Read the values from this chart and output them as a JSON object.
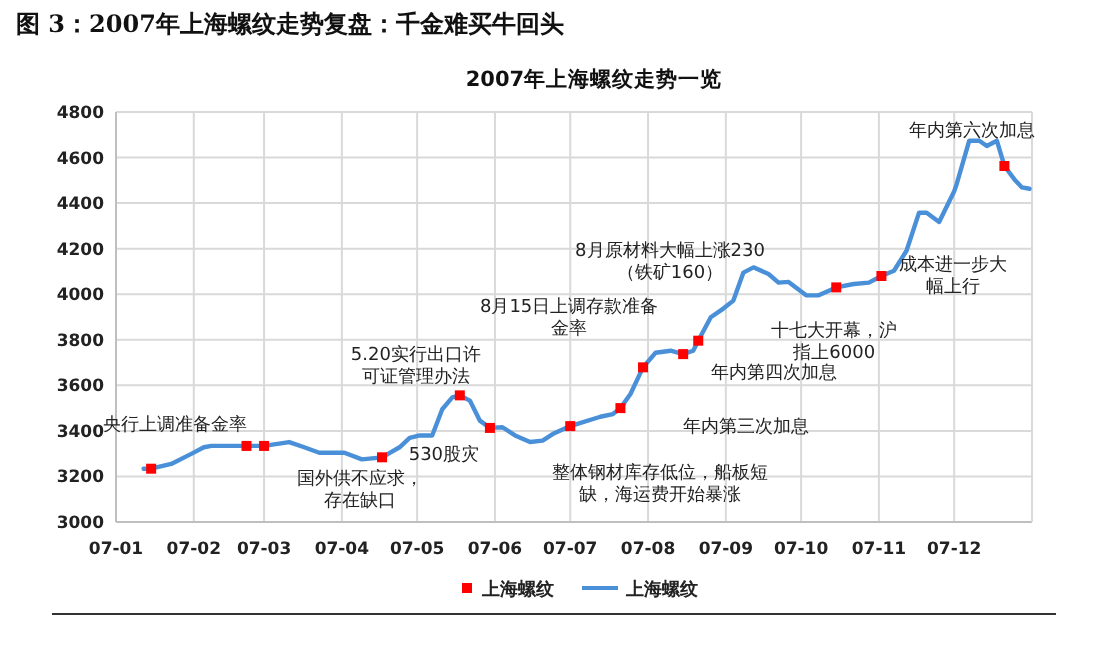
{
  "chart_data": {
    "type": "line",
    "title": "图 3：2007年上海螺纹走势复盘：千金难买牛回头",
    "subtitle": "2007年上海螺纹走势一览",
    "xlim": [
      "2007-01-01",
      "2008-01-01"
    ],
    "xticks": [
      {
        "value": "2007-01-01",
        "label": "07-01"
      },
      {
        "value": "2007-02-01",
        "label": "07-02"
      },
      {
        "value": "2007-03-01",
        "label": "07-03"
      },
      {
        "value": "2007-04-01",
        "label": "07-04"
      },
      {
        "value": "2007-05-01",
        "label": "07-05"
      },
      {
        "value": "2007-06-01",
        "label": "07-06"
      },
      {
        "value": "2007-07-01",
        "label": "07-07"
      },
      {
        "value": "2007-08-01",
        "label": "07-08"
      },
      {
        "value": "2007-09-01",
        "label": "07-09"
      },
      {
        "value": "2007-10-01",
        "label": "07-10"
      },
      {
        "value": "2007-11-01",
        "label": "07-11"
      },
      {
        "value": "2007-12-01",
        "label": "07-12"
      }
    ],
    "ylim": [
      3000,
      4800
    ],
    "yticks": [
      3000,
      3200,
      3400,
      3600,
      3800,
      4000,
      4200,
      4400,
      4600,
      4800
    ],
    "grid": true,
    "legend": "bottom",
    "series": [
      {
        "name": "上海螺纹",
        "type": "scatter",
        "marker": "square",
        "color": "#ff0000",
        "x": [
          "2007-01-15",
          "2007-02-22",
          "2007-03-01",
          "2007-04-17",
          "2007-05-18",
          "2007-05-30",
          "2007-07-01",
          "2007-07-21",
          "2007-07-30",
          "2007-08-15",
          "2007-08-21",
          "2007-10-15",
          "2007-11-02",
          "2007-12-21"
        ],
        "values": [
          3234,
          3334,
          3334,
          3284,
          3556,
          3413,
          3421,
          3500,
          3679,
          3737,
          3796,
          4030,
          4080,
          4563
        ]
      },
      {
        "name": "上海螺纹",
        "color": "#4a90d9",
        "x": [
          "2007-01-12",
          "2007-01-15",
          "2007-01-23",
          "2007-01-31",
          "2007-02-05",
          "2007-02-08",
          "2007-02-21",
          "2007-03-01",
          "2007-03-11",
          "2007-03-17",
          "2007-03-23",
          "2007-04-02",
          "2007-04-09",
          "2007-04-17",
          "2007-04-24",
          "2007-04-28",
          "2007-05-02",
          "2007-05-07",
          "2007-05-11",
          "2007-05-15",
          "2007-05-18",
          "2007-05-22",
          "2007-05-26",
          "2007-05-30",
          "2007-06-04",
          "2007-06-09",
          "2007-06-15",
          "2007-06-20",
          "2007-06-24",
          "2007-07-01",
          "2007-07-13",
          "2007-07-18",
          "2007-07-21",
          "2007-07-25",
          "2007-07-30",
          "2007-08-04",
          "2007-08-10",
          "2007-08-15",
          "2007-08-19",
          "2007-08-21",
          "2007-08-26",
          "2007-08-31",
          "2007-09-04",
          "2007-09-08",
          "2007-09-12",
          "2007-09-18",
          "2007-09-22",
          "2007-09-26",
          "2007-10-03",
          "2007-10-08",
          "2007-10-15",
          "2007-10-22",
          "2007-10-28",
          "2007-11-02",
          "2007-11-07",
          "2007-11-12",
          "2007-11-17",
          "2007-11-20",
          "2007-11-25",
          "2007-12-01",
          "2007-12-02",
          "2007-12-07",
          "2007-12-11",
          "2007-12-14",
          "2007-12-18",
          "2007-12-21",
          "2007-12-25",
          "2007-12-28",
          "2007-12-31"
        ],
        "values": [
          3234,
          3234,
          3255,
          3299,
          3328,
          3334,
          3334,
          3334,
          3351,
          3328,
          3304,
          3304,
          3275,
          3284,
          3328,
          3369,
          3380,
          3380,
          3495,
          3547,
          3556,
          3533,
          3445,
          3413,
          3416,
          3380,
          3351,
          3357,
          3386,
          3421,
          3462,
          3474,
          3500,
          3562,
          3679,
          3743,
          3752,
          3737,
          3752,
          3796,
          3899,
          3937,
          3972,
          4095,
          4118,
          4089,
          4051,
          4054,
          3995,
          3995,
          4030,
          4045,
          4051,
          4080,
          4103,
          4191,
          4358,
          4358,
          4317,
          4452,
          4484,
          4674,
          4674,
          4651,
          4674,
          4563,
          4504,
          4469,
          4463
        ]
      }
    ],
    "annotations": [
      {
        "text": "央行上调准备金率",
        "x": "2007-01-15",
        "y": 3234
      },
      {
        "text": "国外供不应求，存在缺口",
        "x": "2007-04-17",
        "y": 3284
      },
      {
        "text": "5.20实行出口许可证管理办法",
        "x": "2007-05-18",
        "y": 3556
      },
      {
        "text": "530股灾",
        "x": "2007-05-30",
        "y": 3413
      },
      {
        "text": "8月15日上调存款准备金率",
        "x": "2007-08-15",
        "y": 3737
      },
      "8月原材料大幅上涨230（铁矿160）",
      {
        "text": "整体钢材库存低位，船板短缺，海运费开始暴涨",
        "x": "2007-07-01",
        "y": 3421
      },
      "年内第三次加息",
      {
        "text": "年内第四次加息",
        "x": "2007-08-21",
        "y": 3796
      },
      {
        "text": "十七大开幕，沪指上6000",
        "x": "2007-10-15",
        "y": 4030
      },
      {
        "text": "成本进一步大幅上行",
        "x": "2007-11-02",
        "y": 4080
      },
      {
        "text": "年内第六次加息",
        "x": "2007-12-21",
        "y": 4563
      }
    ]
  }
}
